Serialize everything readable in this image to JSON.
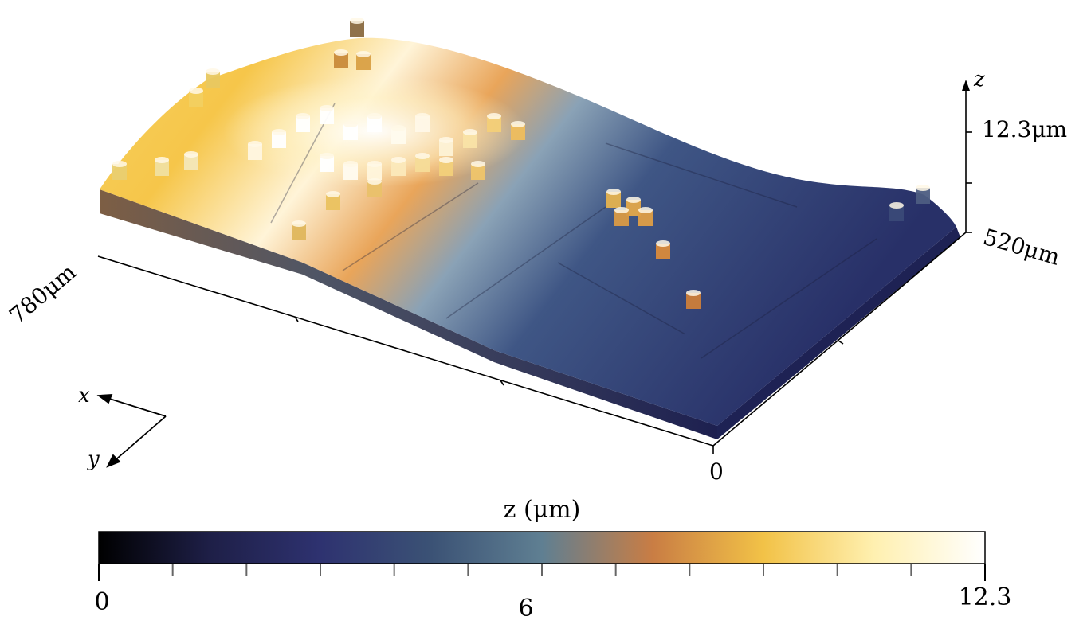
{
  "chart_data": {
    "type": "surface-3d",
    "axes": {
      "x_label": "x",
      "y_label": "y",
      "z_label": "z",
      "x_extent_label": "780μm",
      "y_extent_label": "520μm",
      "z_max_label": "12.3μm",
      "origin_label": "0",
      "x_range": [
        0,
        780
      ],
      "y_range": [
        0,
        520
      ],
      "z_range": [
        0,
        12.3
      ]
    },
    "colorbar": {
      "title": "z (μm)",
      "min_label": "0",
      "mid_label": "6",
      "max_label": "12.3",
      "range": [
        0,
        12.3
      ],
      "ticks": [
        0,
        1.025,
        2.05,
        3.075,
        4.1,
        5.125,
        6.15,
        7.175,
        8.2,
        9.225,
        10.25,
        11.275,
        12.3
      ],
      "colormap": [
        "#000000",
        "#1e1f47",
        "#2e3270",
        "#3b5275",
        "#5f7f92",
        "#c97d44",
        "#f2c247",
        "#fff0b0",
        "#ffffff"
      ]
    },
    "surface_profile": {
      "description_points": [
        {
          "x": 0,
          "z": 6.0
        },
        {
          "x": 260,
          "z": 11.0
        },
        {
          "x": 520,
          "z": 6.5
        },
        {
          "x": 780,
          "z": 3.5
        }
      ],
      "max_z": 12.3,
      "min_z": 0
    }
  }
}
